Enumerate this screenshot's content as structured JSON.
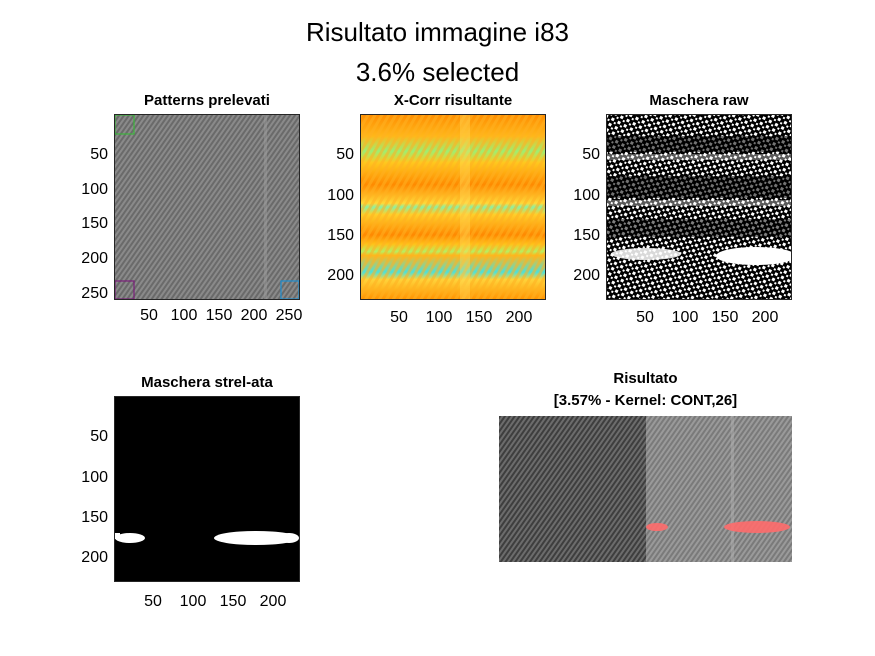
{
  "figure": {
    "title_line1": "Risultato immagine i83",
    "title_line2": "3.6% selected"
  },
  "panels": [
    {
      "title": "Patterns prelevati",
      "y_ticks": [
        "50",
        "100",
        "150",
        "200",
        "250"
      ],
      "x_ticks": [
        "50",
        "100",
        "150",
        "200",
        "250"
      ],
      "colors": {
        "box_green": "#3cb43c",
        "box_purple": "#7a1f7a",
        "box_blue": "#1e8fd0"
      }
    },
    {
      "title": "X-Corr risultante",
      "y_ticks": [
        "50",
        "100",
        "150",
        "200"
      ],
      "x_ticks": [
        "50",
        "100",
        "150",
        "200"
      ],
      "colors": {
        "low": "#ff7a00",
        "mid": "#ffd21a",
        "high": "#3fe0d0"
      }
    },
    {
      "title": "Maschera raw",
      "y_ticks": [
        "50",
        "100",
        "150",
        "200"
      ],
      "x_ticks": [
        "50",
        "100",
        "150",
        "200"
      ]
    },
    {
      "title": "Maschera strel-ata",
      "y_ticks": [
        "50",
        "100",
        "150",
        "200"
      ],
      "x_ticks": [
        "50",
        "100",
        "150",
        "200"
      ]
    },
    {
      "title_line1": "Risultato",
      "title_line2": "[3.57% - Kernel: CONT,26]",
      "colors": {
        "highlight": "#ff6b6b"
      }
    }
  ]
}
